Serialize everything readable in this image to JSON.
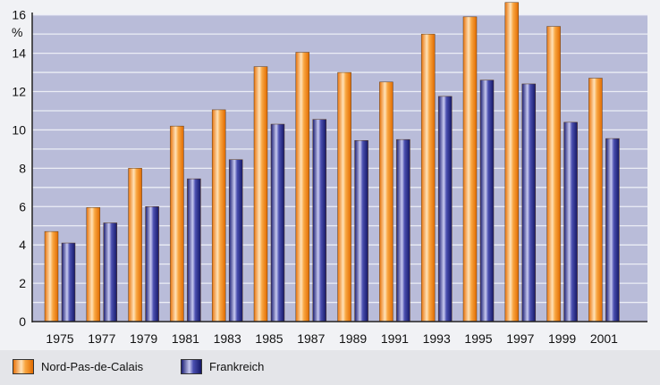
{
  "chart_data": {
    "type": "bar",
    "title": "",
    "ylabel": "%",
    "xlabel": "",
    "ylim": [
      0,
      16
    ],
    "yticks": [
      0,
      2,
      4,
      6,
      8,
      10,
      12,
      14,
      16
    ],
    "grid": true,
    "legend_position": "bottom-left",
    "categories": [
      "1975",
      "1977",
      "1979",
      "1981",
      "1983",
      "1985",
      "1987",
      "1989",
      "1991",
      "1993",
      "1995",
      "1997",
      "1999",
      "2001"
    ],
    "series": [
      {
        "name": "Nord-Pas-de-Calais",
        "color": "#f28a1a",
        "values": [
          4.7,
          5.95,
          8.0,
          10.2,
          11.05,
          13.3,
          14.05,
          13.0,
          12.5,
          15.0,
          15.9,
          16.65,
          15.4,
          12.7
        ]
      },
      {
        "name": "Frankreich",
        "color": "#2b2f8f",
        "values": [
          4.1,
          5.15,
          6.0,
          7.45,
          8.45,
          10.3,
          10.55,
          9.45,
          9.5,
          11.75,
          12.6,
          12.4,
          10.4,
          9.55
        ]
      }
    ],
    "plot_background": "#b9bcd9"
  }
}
